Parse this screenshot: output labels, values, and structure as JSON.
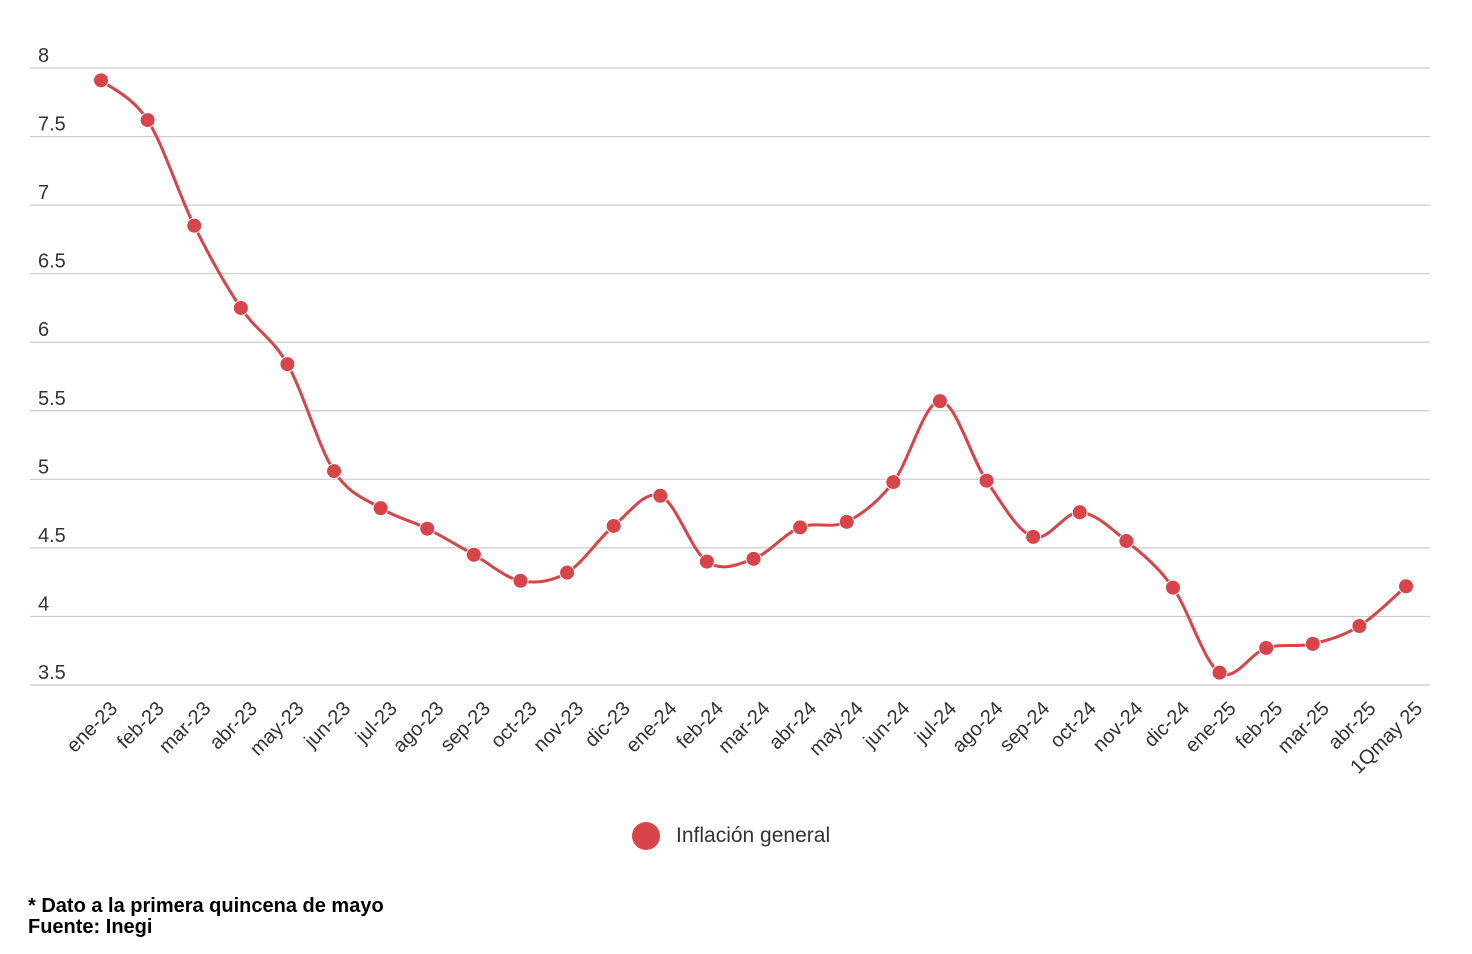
{
  "chart_data": {
    "type": "line",
    "categories": [
      "ene-23",
      "feb-23",
      "mar-23",
      "abr-23",
      "may-23",
      "jun-23",
      "jul-23",
      "ago-23",
      "sep-23",
      "oct-23",
      "nov-23",
      "dic-23",
      "ene-24",
      "feb-24",
      "mar-24",
      "abr-24",
      "may-24",
      "jun-24",
      "jul-24",
      "ago-24",
      "sep-24",
      "oct-24",
      "nov-24",
      "dic-24",
      "ene-25",
      "feb-25",
      "mar-25",
      "abr-25",
      "1Qmay 25"
    ],
    "series": [
      {
        "name": "Inflación general",
        "values": [
          7.91,
          7.62,
          6.85,
          6.25,
          5.84,
          5.06,
          4.79,
          4.64,
          4.45,
          4.26,
          4.32,
          4.66,
          4.88,
          4.4,
          4.42,
          4.65,
          4.69,
          4.98,
          5.57,
          4.99,
          4.58,
          4.76,
          4.55,
          4.21,
          3.59,
          3.77,
          3.8,
          3.93,
          4.22
        ]
      }
    ],
    "ylim": [
      3.5,
      8
    ],
    "yticks": [
      "3.5",
      "4",
      "4.5",
      "5",
      "5.5",
      "6",
      "6.5",
      "7",
      "7.5",
      "8"
    ],
    "grid": true,
    "legend_position": "bottom-center",
    "line_color": "#d9434a"
  },
  "legend": {
    "label": "Inflación general"
  },
  "notes": {
    "line1": "* Dato a la primera quincena de mayo",
    "line2": "Fuente: Inegi"
  }
}
